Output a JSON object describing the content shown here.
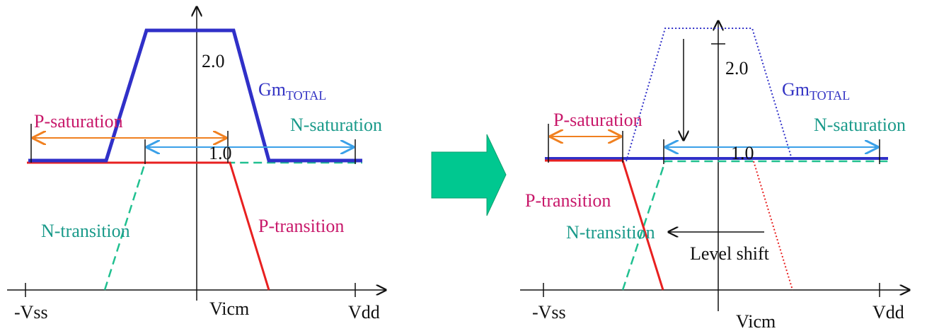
{
  "left": {
    "y_tick_high": "2.0",
    "y_tick_low": "1.0",
    "x_left": "-Vss",
    "x_mid": "Vicm",
    "x_right": "Vdd",
    "gm": "Gm",
    "gm_sub": "TOTAL",
    "p_saturation": "P-saturation",
    "n_saturation": "N-saturation",
    "n_transition": "N-transition",
    "p_transition": "P-transition"
  },
  "right": {
    "y_tick_high": "2.0",
    "y_tick_low": "1.0",
    "x_left": "-Vss",
    "x_mid": "Vicm",
    "x_right": "Vdd",
    "gm": "Gm",
    "gm_sub": "TOTAL",
    "p_saturation": "P-saturation",
    "n_saturation": "N-saturation",
    "n_transition": "N-transition",
    "p_transition": "P-transition",
    "level_shift": "Level shift"
  }
}
